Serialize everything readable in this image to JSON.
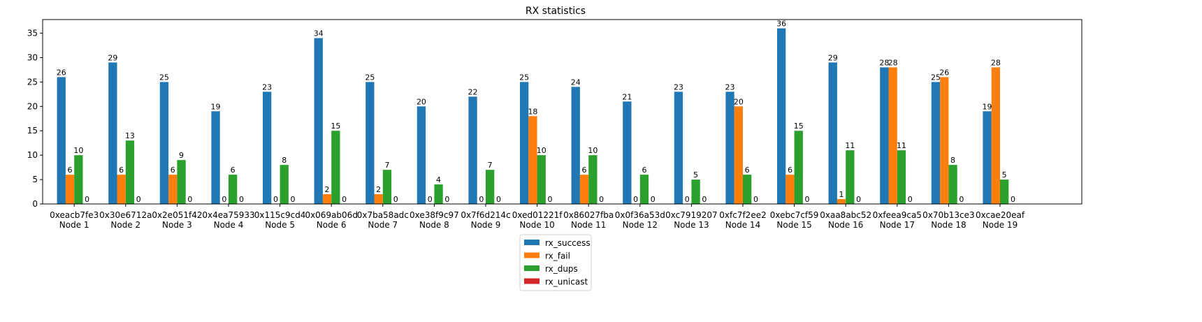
{
  "chart_data": {
    "type": "bar",
    "title": "RX statistics",
    "xlabel": "",
    "ylabel": "",
    "ylim": [
      0,
      37.8
    ],
    "yticks": [
      0,
      5,
      10,
      15,
      20,
      25,
      30,
      35
    ],
    "grid": false,
    "legend_position": "bottom-center",
    "categories": [
      "0xeacb7fe3\nNode 1",
      "0x30e6712a\nNode 2",
      "0x2e051f42\nNode 3",
      "0x4ea75933\nNode 4",
      "0x115c9cd4\nNode 5",
      "0x069ab06d\nNode 6",
      "0x7ba58adc\nNode 7",
      "0xe38f9c97\nNode 8",
      "0x7f6d214c\nNode 9",
      "0xed01221f\nNode 10",
      "0x86027fba\nNode 11",
      "0x0f36a53d\nNode 12",
      "0xc7919207\nNode 13",
      "0xfc7f2ee2\nNode 14",
      "0xebc7cf59\nNode 15",
      "0xaa8abc52\nNode 16",
      "0xfeea9ca5\nNode 17",
      "0x70b13ce3\nNode 18",
      "0xcae20eaf\nNode 19"
    ],
    "series": [
      {
        "name": "rx_success",
        "color": "#1f77b4",
        "values": [
          26,
          29,
          25,
          19,
          23,
          34,
          25,
          20,
          22,
          25,
          24,
          21,
          23,
          23,
          36,
          29,
          28,
          25,
          19
        ]
      },
      {
        "name": "rx_fail",
        "color": "#ff7f0e",
        "values": [
          6,
          6,
          6,
          0,
          0,
          2,
          2,
          0,
          0,
          18,
          6,
          0,
          0,
          20,
          6,
          1,
          28,
          26,
          28
        ]
      },
      {
        "name": "rx_dups",
        "color": "#2ca02c",
        "values": [
          10,
          13,
          9,
          6,
          8,
          15,
          7,
          4,
          7,
          10,
          10,
          6,
          5,
          6,
          15,
          11,
          11,
          8,
          5
        ]
      },
      {
        "name": "rx_unicast",
        "color": "#d62728",
        "values": [
          0,
          0,
          0,
          0,
          0,
          0,
          0,
          0,
          0,
          0,
          0,
          0,
          0,
          0,
          0,
          0,
          0,
          0,
          0
        ]
      }
    ]
  }
}
